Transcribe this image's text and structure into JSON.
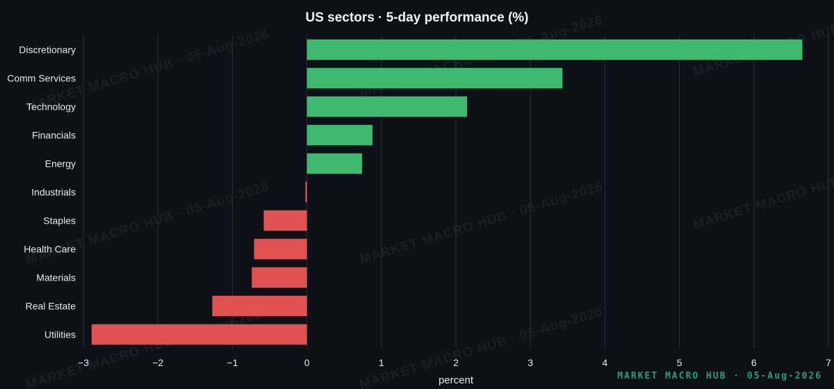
{
  "chart_data": {
    "type": "bar",
    "orientation": "horizontal",
    "title": "US sectors · 5-day performance (%)",
    "xlabel": "percent",
    "ylabel": "",
    "xlim": [
      -3,
      7
    ],
    "x_ticks": [
      -3,
      -2,
      -1,
      0,
      1,
      2,
      3,
      4,
      5,
      6,
      7
    ],
    "grid": true,
    "categories": [
      "Discretionary",
      "Comm Services",
      "Technology",
      "Financials",
      "Energy",
      "Industrials",
      "Staples",
      "Health Care",
      "Materials",
      "Real Estate",
      "Utilities"
    ],
    "values": [
      6.65,
      3.43,
      2.15,
      0.88,
      0.74,
      -0.02,
      -0.58,
      -0.71,
      -0.74,
      -1.27,
      -2.89
    ],
    "colors": {
      "positive": "#3dba6f",
      "negative": "#e05252"
    }
  },
  "branding": {
    "footer": "MARKET MACRO HUB · 05-Aug-2026",
    "watermark": "MARKET MACRO HUB · 05-Aug-2026"
  },
  "theme": {
    "background": "#0d1117",
    "grid": "#2a2f37",
    "text": "#e6e9ee",
    "accent": "#1fa37a"
  }
}
